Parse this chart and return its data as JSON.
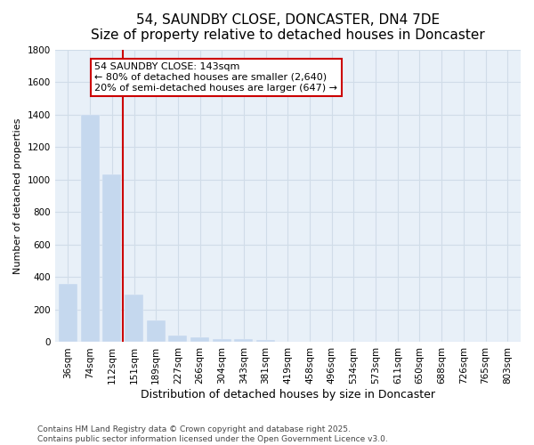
{
  "title": "54, SAUNDBY CLOSE, DONCASTER, DN4 7DE",
  "subtitle": "Size of property relative to detached houses in Doncaster",
  "xlabel": "Distribution of detached houses by size in Doncaster",
  "ylabel": "Number of detached properties",
  "categories": [
    "36sqm",
    "74sqm",
    "112sqm",
    "151sqm",
    "189sqm",
    "227sqm",
    "266sqm",
    "304sqm",
    "343sqm",
    "381sqm",
    "419sqm",
    "458sqm",
    "496sqm",
    "534sqm",
    "573sqm",
    "611sqm",
    "650sqm",
    "688sqm",
    "726sqm",
    "765sqm",
    "803sqm"
  ],
  "values": [
    360,
    1400,
    1030,
    290,
    135,
    40,
    30,
    20,
    20,
    15,
    5,
    5,
    3,
    0,
    0,
    0,
    0,
    0,
    0,
    0,
    0
  ],
  "bar_color": "#c5d8ee",
  "property_line_x": 2.5,
  "property_line_color": "#cc0000",
  "annotation_text": "54 SAUNDBY CLOSE: 143sqm\n← 80% of detached houses are smaller (2,640)\n20% of semi-detached houses are larger (647) →",
  "annotation_box_facecolor": "#ffffff",
  "annotation_box_edgecolor": "#cc0000",
  "ylim": [
    0,
    1800
  ],
  "yticks": [
    0,
    200,
    400,
    600,
    800,
    1000,
    1200,
    1400,
    1600,
    1800
  ],
  "grid_color": "#d0dce8",
  "background_color": "#ffffff",
  "plot_bg_color": "#e8f0f8",
  "title_fontsize": 11,
  "subtitle_fontsize": 9,
  "xlabel_fontsize": 9,
  "ylabel_fontsize": 8,
  "tick_fontsize": 7.5,
  "annotation_fontsize": 8,
  "footer_fontsize": 6.5,
  "footer_line1": "Contains HM Land Registry data © Crown copyright and database right 2025.",
  "footer_line2": "Contains public sector information licensed under the Open Government Licence v3.0."
}
